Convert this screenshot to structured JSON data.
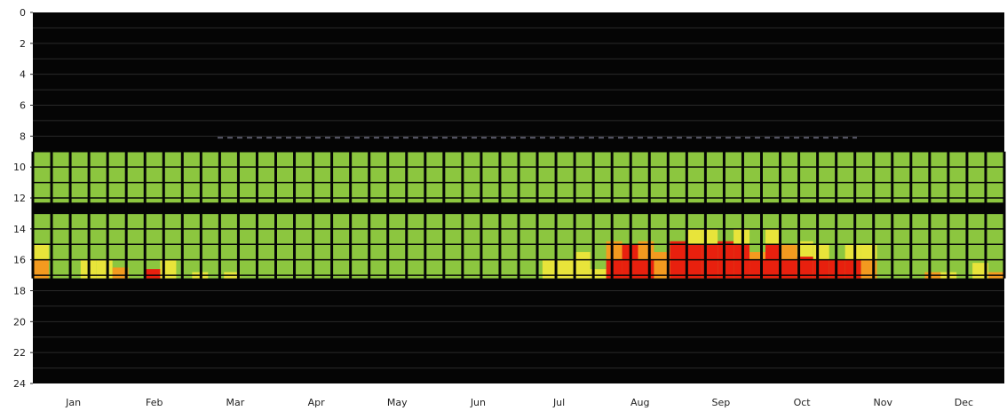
{
  "chart_data": {
    "type": "heatmap",
    "title": "",
    "xlabel": "",
    "ylabel": "",
    "x_tick_labels": [
      "Jan",
      "Feb",
      "Mar",
      "Apr",
      "May",
      "Jun",
      "Jul",
      "Aug",
      "Sep",
      "Oct",
      "Nov",
      "Dec"
    ],
    "y_tick_labels": [
      "0",
      "2",
      "4",
      "6",
      "8",
      "10",
      "12",
      "14",
      "16",
      "18",
      "20",
      "22",
      "24"
    ],
    "ylim": [
      0,
      24
    ],
    "y_inverted": true,
    "grid": true,
    "active_periods": [
      {
        "start_hour": 9,
        "end_hour": 12.3
      },
      {
        "start_hour": 13,
        "end_hour": 17.2
      }
    ],
    "weeks_per_year": 52,
    "value_levels": [
      "green",
      "yellow",
      "orange",
      "red"
    ],
    "colors": {
      "background": "#050505",
      "green": "#8cc63f",
      "yellow": "#e8e43a",
      "orange": "#f39a1f",
      "red": "#e8200e",
      "grid": "#2a2a2a"
    },
    "stressed_cells": [
      {
        "week": 0,
        "from_hour": 15.0,
        "to_hour": 16.0,
        "level": "yellow"
      },
      {
        "week": 0,
        "from_hour": 16.0,
        "to_hour": 17.2,
        "level": "orange"
      },
      {
        "week": 3,
        "from_hour": 16.0,
        "to_hour": 17.2,
        "level": "yellow"
      },
      {
        "week": 4,
        "from_hour": 16.0,
        "to_hour": 17.2,
        "level": "yellow"
      },
      {
        "week": 5,
        "from_hour": 16.5,
        "to_hour": 17.2,
        "level": "orange"
      },
      {
        "week": 7,
        "from_hour": 16.6,
        "to_hour": 17.2,
        "level": "red"
      },
      {
        "week": 8,
        "from_hour": 16.0,
        "to_hour": 17.2,
        "level": "yellow"
      },
      {
        "week": 10,
        "from_hour": 16.8,
        "to_hour": 17.2,
        "level": "yellow"
      },
      {
        "week": 12,
        "from_hour": 16.8,
        "to_hour": 17.2,
        "level": "yellow"
      },
      {
        "week": 32,
        "from_hour": 16.0,
        "to_hour": 17.2,
        "level": "yellow"
      },
      {
        "week": 33,
        "from_hour": 16.0,
        "to_hour": 17.2,
        "level": "yellow"
      },
      {
        "week": 34,
        "from_hour": 15.5,
        "to_hour": 17.2,
        "level": "yellow"
      },
      {
        "week": 35,
        "from_hour": 16.6,
        "to_hour": 17.2,
        "level": "yellow"
      },
      {
        "week": 36,
        "from_hour": 14.8,
        "to_hour": 16.0,
        "level": "orange"
      },
      {
        "week": 36,
        "from_hour": 16.0,
        "to_hour": 17.2,
        "level": "red"
      },
      {
        "week": 37,
        "from_hour": 15.0,
        "to_hour": 17.2,
        "level": "red"
      },
      {
        "week": 38,
        "from_hour": 14.8,
        "to_hour": 16.0,
        "level": "orange"
      },
      {
        "week": 38,
        "from_hour": 16.0,
        "to_hour": 17.2,
        "level": "red"
      },
      {
        "week": 39,
        "from_hour": 15.5,
        "to_hour": 17.2,
        "level": "orange"
      },
      {
        "week": 40,
        "from_hour": 14.8,
        "to_hour": 17.2,
        "level": "red"
      },
      {
        "week": 41,
        "from_hour": 14.0,
        "to_hour": 15.0,
        "level": "yellow"
      },
      {
        "week": 41,
        "from_hour": 15.0,
        "to_hour": 17.2,
        "level": "red"
      },
      {
        "week": 42,
        "from_hour": 14.0,
        "to_hour": 15.0,
        "level": "yellow"
      },
      {
        "week": 42,
        "from_hour": 15.0,
        "to_hour": 17.2,
        "level": "red"
      },
      {
        "week": 43,
        "from_hour": 14.8,
        "to_hour": 17.2,
        "level": "red"
      },
      {
        "week": 44,
        "from_hour": 14.0,
        "to_hour": 15.0,
        "level": "yellow"
      },
      {
        "week": 44,
        "from_hour": 15.0,
        "to_hour": 17.2,
        "level": "red"
      },
      {
        "week": 45,
        "from_hour": 15.5,
        "to_hour": 16.0,
        "level": "orange"
      },
      {
        "week": 45,
        "from_hour": 16.0,
        "to_hour": 17.2,
        "level": "red"
      },
      {
        "week": 46,
        "from_hour": 14.0,
        "to_hour": 15.0,
        "level": "yellow"
      },
      {
        "week": 46,
        "from_hour": 15.0,
        "to_hour": 17.2,
        "level": "red"
      },
      {
        "week": 47,
        "from_hour": 15.0,
        "to_hour": 16.0,
        "level": "orange"
      },
      {
        "week": 47,
        "from_hour": 16.0,
        "to_hour": 17.2,
        "level": "red"
      },
      {
        "week": 48,
        "from_hour": 14.8,
        "to_hour": 15.8,
        "level": "yellow"
      },
      {
        "week": 48,
        "from_hour": 15.8,
        "to_hour": 17.2,
        "level": "red"
      },
      {
        "week": 49,
        "from_hour": 15.0,
        "to_hour": 16.0,
        "level": "yellow"
      },
      {
        "week": 49,
        "from_hour": 16.0,
        "to_hour": 17.2,
        "level": "red"
      },
      {
        "week": 50,
        "from_hour": 16.0,
        "to_hour": 17.2,
        "level": "red"
      },
      {
        "week": 51,
        "from_hour": 15.0,
        "to_hour": 16.0,
        "level": "yellow"
      },
      {
        "week": 51,
        "from_hour": 16.0,
        "to_hour": 17.2,
        "level": "red"
      },
      {
        "week": 52,
        "from_hour": 15.0,
        "to_hour": 16.0,
        "level": "yellow"
      },
      {
        "week": 52,
        "from_hour": 16.0,
        "to_hour": 17.2,
        "level": "orange"
      },
      {
        "week": 56,
        "from_hour": 16.8,
        "to_hour": 17.2,
        "level": "orange"
      },
      {
        "week": 57,
        "from_hour": 16.8,
        "to_hour": 17.2,
        "level": "yellow"
      },
      {
        "week": 59,
        "from_hour": 16.2,
        "to_hour": 17.2,
        "level": "yellow"
      },
      {
        "week": 60,
        "from_hour": 16.8,
        "to_hour": 17.2,
        "level": "orange"
      }
    ]
  }
}
